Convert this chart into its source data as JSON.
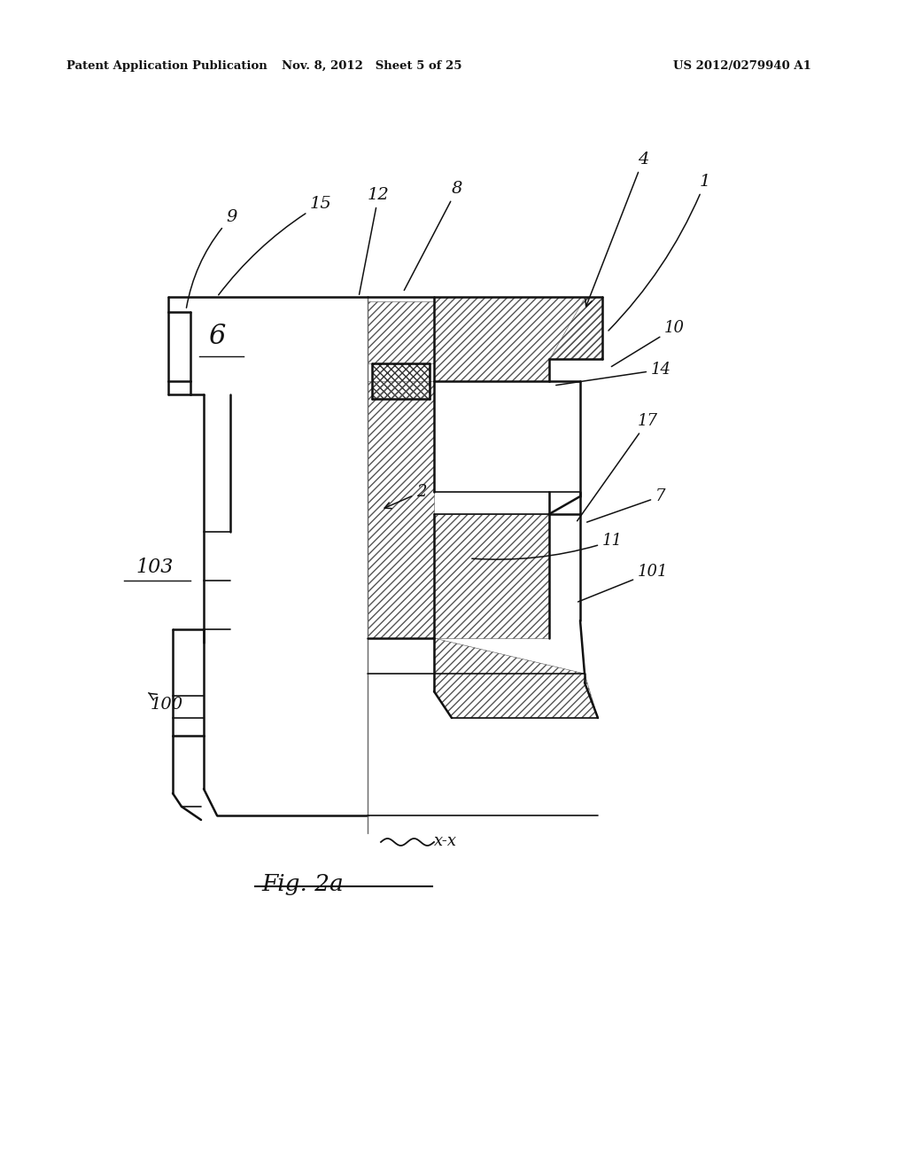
{
  "bg_color": "#ffffff",
  "header_left": "Patent Application Publication",
  "header_mid": "Nov. 8, 2012   Sheet 5 of 25",
  "header_right": "US 2012/0279940 A1",
  "fig_label": "Fig. 2a",
  "section_label": "x-x"
}
